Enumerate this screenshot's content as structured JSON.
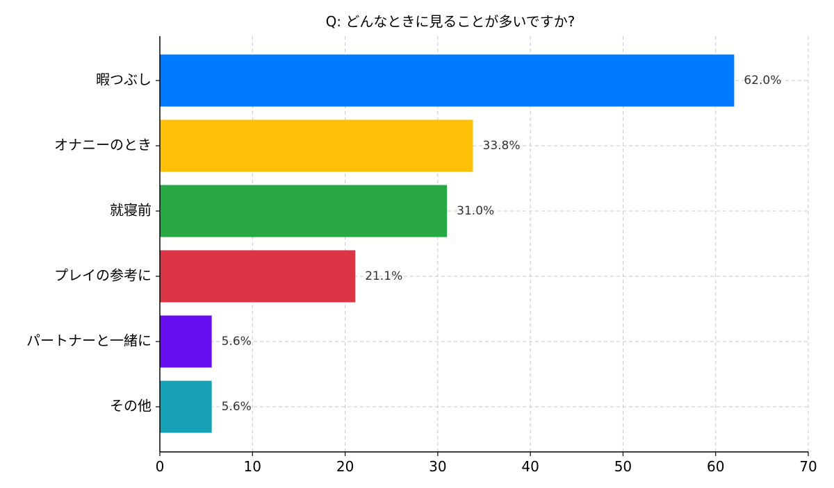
{
  "chart_data": {
    "type": "bar",
    "orientation": "horizontal",
    "title": "Q: どんなときに見ることが多いですか?",
    "xlabel": "",
    "ylabel": "",
    "categories": [
      "暇つぶし",
      "オナニーのとき",
      "就寝前",
      "プレイの参考に",
      "パートナーと一緒に",
      "その他"
    ],
    "values": [
      62.0,
      33.8,
      31.0,
      21.1,
      5.6,
      5.6
    ],
    "data_labels": [
      "62.0%",
      "33.8%",
      "31.0%",
      "21.1%",
      "5.6%",
      "5.6%"
    ],
    "colors": [
      "#007bff",
      "#ffc107",
      "#28a745",
      "#dc3545",
      "#6610f2",
      "#17a2b8"
    ],
    "xlim": [
      0,
      70
    ],
    "x_ticks": [
      0,
      10,
      20,
      30,
      40,
      50,
      60,
      70
    ],
    "grid": true
  }
}
